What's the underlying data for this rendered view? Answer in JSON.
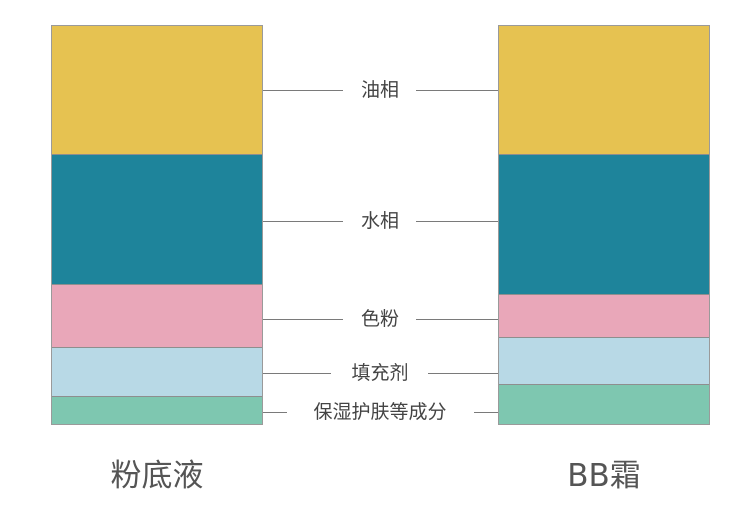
{
  "products": [
    {
      "name": "粉底液",
      "layers": [
        {
          "fraction": 0.325,
          "color": "#E6C251"
        },
        {
          "fraction": 0.325,
          "color": "#1E849B"
        },
        {
          "fraction": 0.16,
          "color": "#E9A7B9"
        },
        {
          "fraction": 0.122,
          "color": "#B8D9E6"
        },
        {
          "fraction": 0.068,
          "color": "#7EC7B0"
        }
      ]
    },
    {
      "name": "BB霜",
      "layers": [
        {
          "fraction": 0.325,
          "color": "#E6C251"
        },
        {
          "fraction": 0.35,
          "color": "#1E849B"
        },
        {
          "fraction": 0.11,
          "color": "#E9A7B9"
        },
        {
          "fraction": 0.118,
          "color": "#B8D9E6"
        },
        {
          "fraction": 0.097,
          "color": "#7EC7B0"
        }
      ]
    }
  ],
  "layer_labels": [
    "油相",
    "水相",
    "色粉",
    "填充剂",
    "保湿护肤等成分"
  ],
  "colors": {
    "oil_phase": "#E6C251",
    "water_phase": "#1E849B",
    "pigment": "#E9A7B9",
    "filler": "#B8D9E6",
    "moisturizer": "#7EC7B0"
  }
}
